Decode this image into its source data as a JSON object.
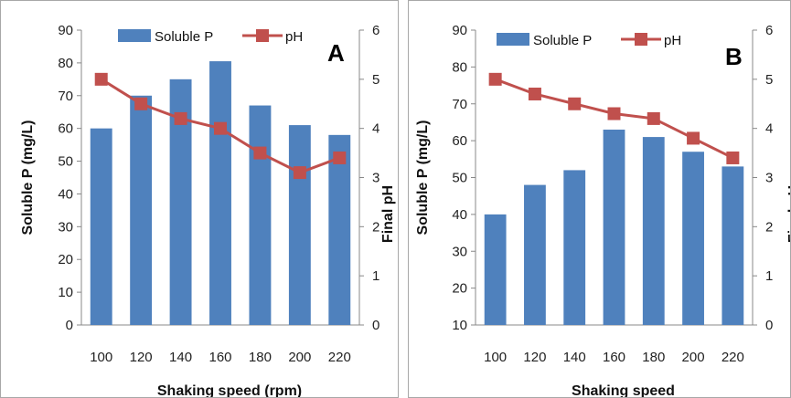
{
  "chart_data": [
    {
      "type": "bar",
      "panel_label": "A",
      "categories": [
        "100",
        "120",
        "140",
        "160",
        "180",
        "200",
        "220"
      ],
      "series": [
        {
          "name": "Soluble P",
          "type": "bar",
          "axis": "left",
          "color": "#4f81bd",
          "values": [
            60,
            70,
            75,
            80.5,
            67,
            61,
            58
          ]
        },
        {
          "name": "pH",
          "type": "line",
          "axis": "right",
          "color": "#c0504d",
          "values": [
            5.0,
            4.5,
            4.2,
            4.0,
            3.5,
            3.1,
            3.4
          ]
        }
      ],
      "xlabel": "Shaking speed (rpm)",
      "ylabel": "Soluble P  (mg/L)",
      "y2label": "Final pH",
      "ylim": [
        0,
        90
      ],
      "y2lim": [
        0,
        6
      ],
      "yticks": [
        "0",
        "10",
        "20",
        "30",
        "40",
        "50",
        "60",
        "70",
        "80",
        "90"
      ],
      "y2ticks": [
        "0",
        "1",
        "2",
        "3",
        "4",
        "5",
        "6"
      ],
      "legend": "top",
      "grid": false
    },
    {
      "type": "bar",
      "panel_label": "B",
      "categories": [
        "100",
        "120",
        "140",
        "160",
        "180",
        "200",
        "220"
      ],
      "series": [
        {
          "name": "Soluble P",
          "type": "bar",
          "axis": "left",
          "color": "#4f81bd",
          "values": [
            40,
            48,
            52,
            63,
            61,
            57,
            53
          ]
        },
        {
          "name": "pH",
          "type": "line",
          "axis": "right",
          "color": "#c0504d",
          "values": [
            5.0,
            4.7,
            4.5,
            4.3,
            4.2,
            3.8,
            3.4
          ]
        }
      ],
      "xlabel": "Shaking speed",
      "ylabel": "Soluble P  (mg/L)",
      "y2label": "Final pH",
      "ylim": [
        10,
        90
      ],
      "y2lim": [
        0,
        6
      ],
      "yticks": [
        "10",
        "20",
        "30",
        "40",
        "50",
        "60",
        "70",
        "80",
        "90"
      ],
      "y2ticks": [
        "0",
        "1",
        "2",
        "3",
        "4",
        "5",
        "6"
      ],
      "legend": "top",
      "grid": false
    }
  ]
}
